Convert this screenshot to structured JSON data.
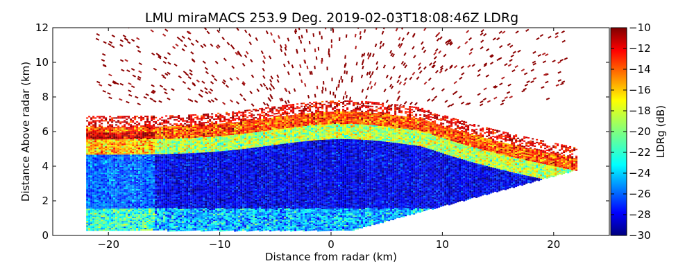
{
  "chart_data": {
    "type": "heatmap",
    "title": "LMU miraMACS 253.9 Deg. 2019-02-03T18:08:46Z  LDRg",
    "xlabel": "Distance from radar (km)",
    "ylabel": "Distance Above radar  (km)",
    "xlim": [
      -25,
      25
    ],
    "ylim": [
      0,
      12
    ],
    "x_ticks": [
      -20,
      -10,
      0,
      10,
      20
    ],
    "x_tick_labels": [
      "−20",
      "−10",
      "0",
      "10",
      "20"
    ],
    "y_ticks": [
      0,
      2,
      4,
      6,
      8,
      10,
      12
    ],
    "y_tick_labels": [
      "0",
      "2",
      "4",
      "6",
      "8",
      "10",
      "12"
    ],
    "scan": {
      "azimuth_deg": 253.9,
      "left_edge_km": -22,
      "right_edge_km": 22,
      "right_edge_top_height_km": 3.8,
      "near_surface_height_km": 0.3,
      "sparse_echo_top_km": 12
    },
    "layers": [
      {
        "name": "cloud-top-depolarizing-edge",
        "height_km": [
          5.5,
          7.8
        ],
        "ldr_db": -12
      },
      {
        "name": "melting-transition",
        "height_km": [
          4.5,
          5.5
        ],
        "ldr_db": -17
      },
      {
        "name": "ice-cloud-core",
        "height_km": [
          1.5,
          4.5
        ],
        "ldr_db": -28
      },
      {
        "name": "low-level-precip",
        "height_km": [
          0.3,
          1.5
        ],
        "ldr_db": -23
      },
      {
        "name": "sparse-upper-echoes",
        "height_km": [
          7.5,
          12
        ],
        "ldr_db": -10
      }
    ],
    "colorbar": {
      "label": "LDRg (dB)",
      "vmin": -30,
      "vmax": -10,
      "ticks": [
        -10,
        -12,
        -14,
        -16,
        -18,
        -20,
        -22,
        -24,
        -26,
        -28,
        -30
      ],
      "tick_labels": [
        "−10",
        "−12",
        "−14",
        "−16",
        "−18",
        "−20",
        "−22",
        "−24",
        "−26",
        "−28",
        "−30"
      ],
      "colormap": "jet",
      "colors": [
        "#00007f",
        "#0000ff",
        "#007fff",
        "#00ffff",
        "#7fff7f",
        "#ffff00",
        "#ff7f00",
        "#ff0000",
        "#7f0000"
      ]
    }
  }
}
